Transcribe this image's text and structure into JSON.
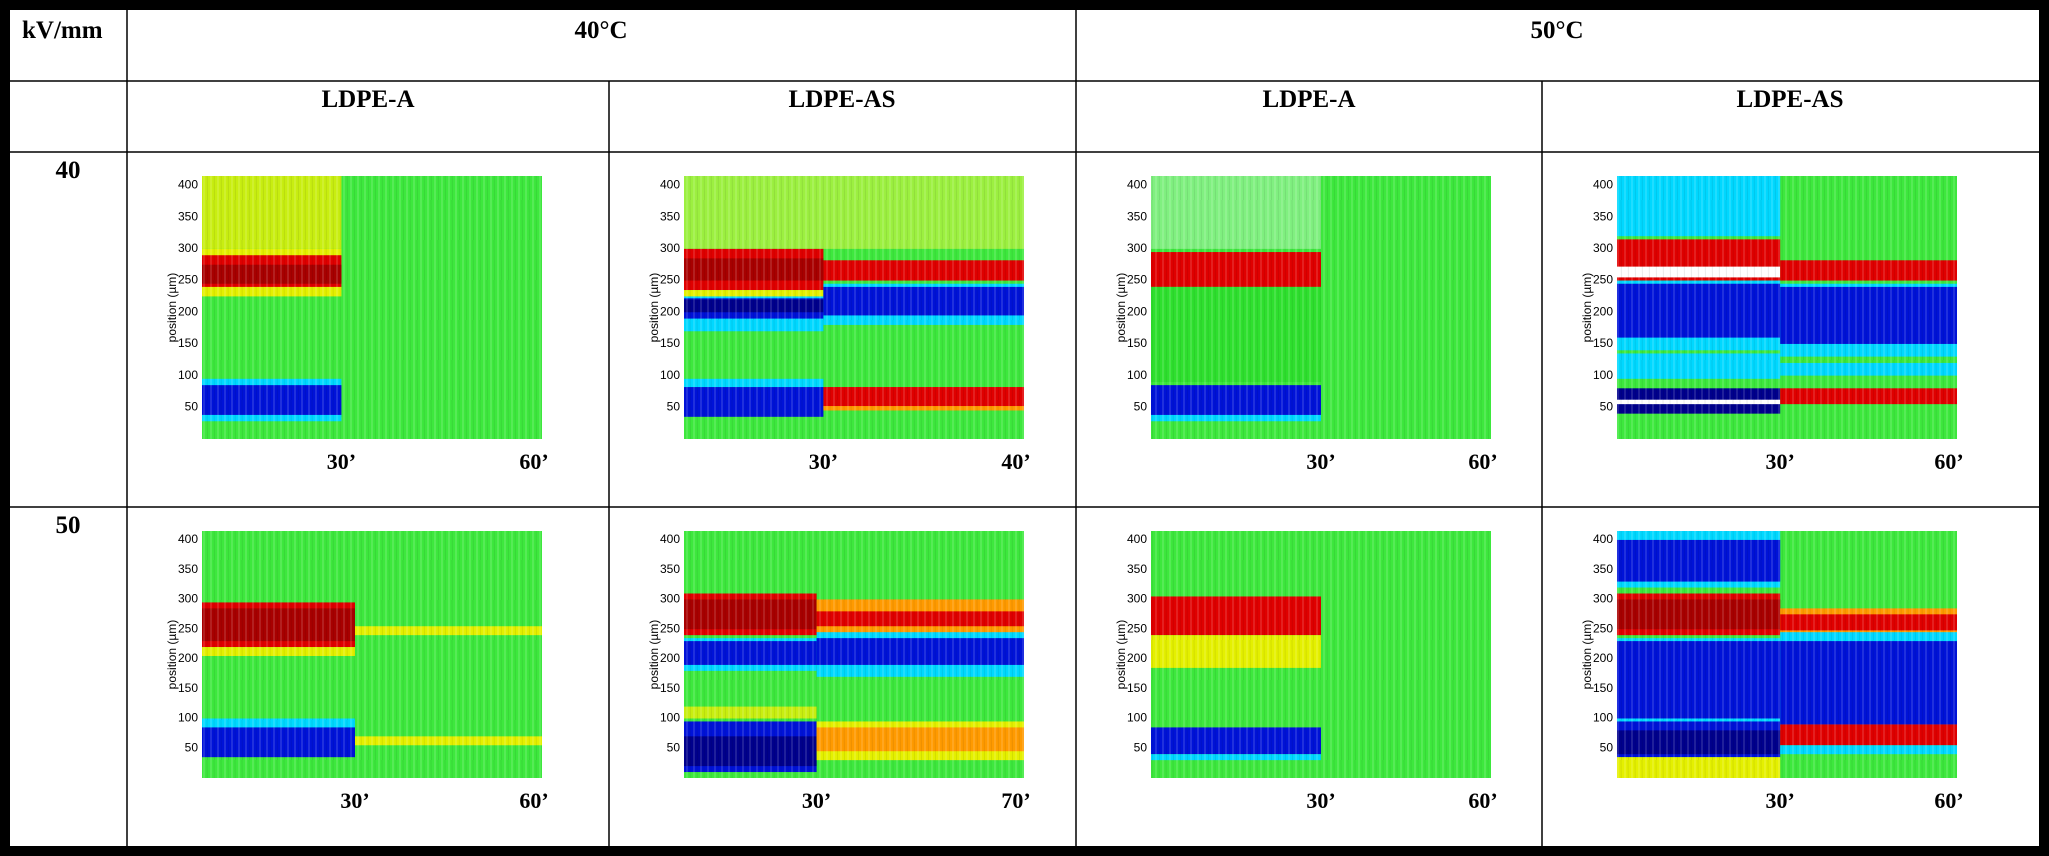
{
  "header": {
    "corner": "kV/mm",
    "temps": [
      "40°C",
      "50°C"
    ],
    "materials": [
      "LDPE-A",
      "LDPE-AS",
      "LDPE-A",
      "LDPE-AS"
    ]
  },
  "axis": {
    "y_label": "position (µm)",
    "yticks": [
      50,
      100,
      150,
      200,
      250,
      300,
      350,
      400
    ]
  },
  "rows": [
    {
      "field": "40",
      "panels": [
        {
          "time_labels": [
            "30’",
            "60’"
          ]
        },
        {
          "time_labels": [
            "30’",
            "40’"
          ]
        },
        {
          "time_labels": [
            "30’",
            "60’"
          ]
        },
        {
          "time_labels": [
            "30’",
            "60’"
          ]
        }
      ]
    },
    {
      "field": "50",
      "panels": [
        {
          "time_labels": [
            "30’",
            "60’"
          ]
        },
        {
          "time_labels": [
            "30’",
            "70’"
          ]
        },
        {
          "time_labels": [
            "30’",
            "60’"
          ]
        },
        {
          "time_labels": [
            "30’",
            "60’"
          ]
        }
      ]
    }
  ]
}
